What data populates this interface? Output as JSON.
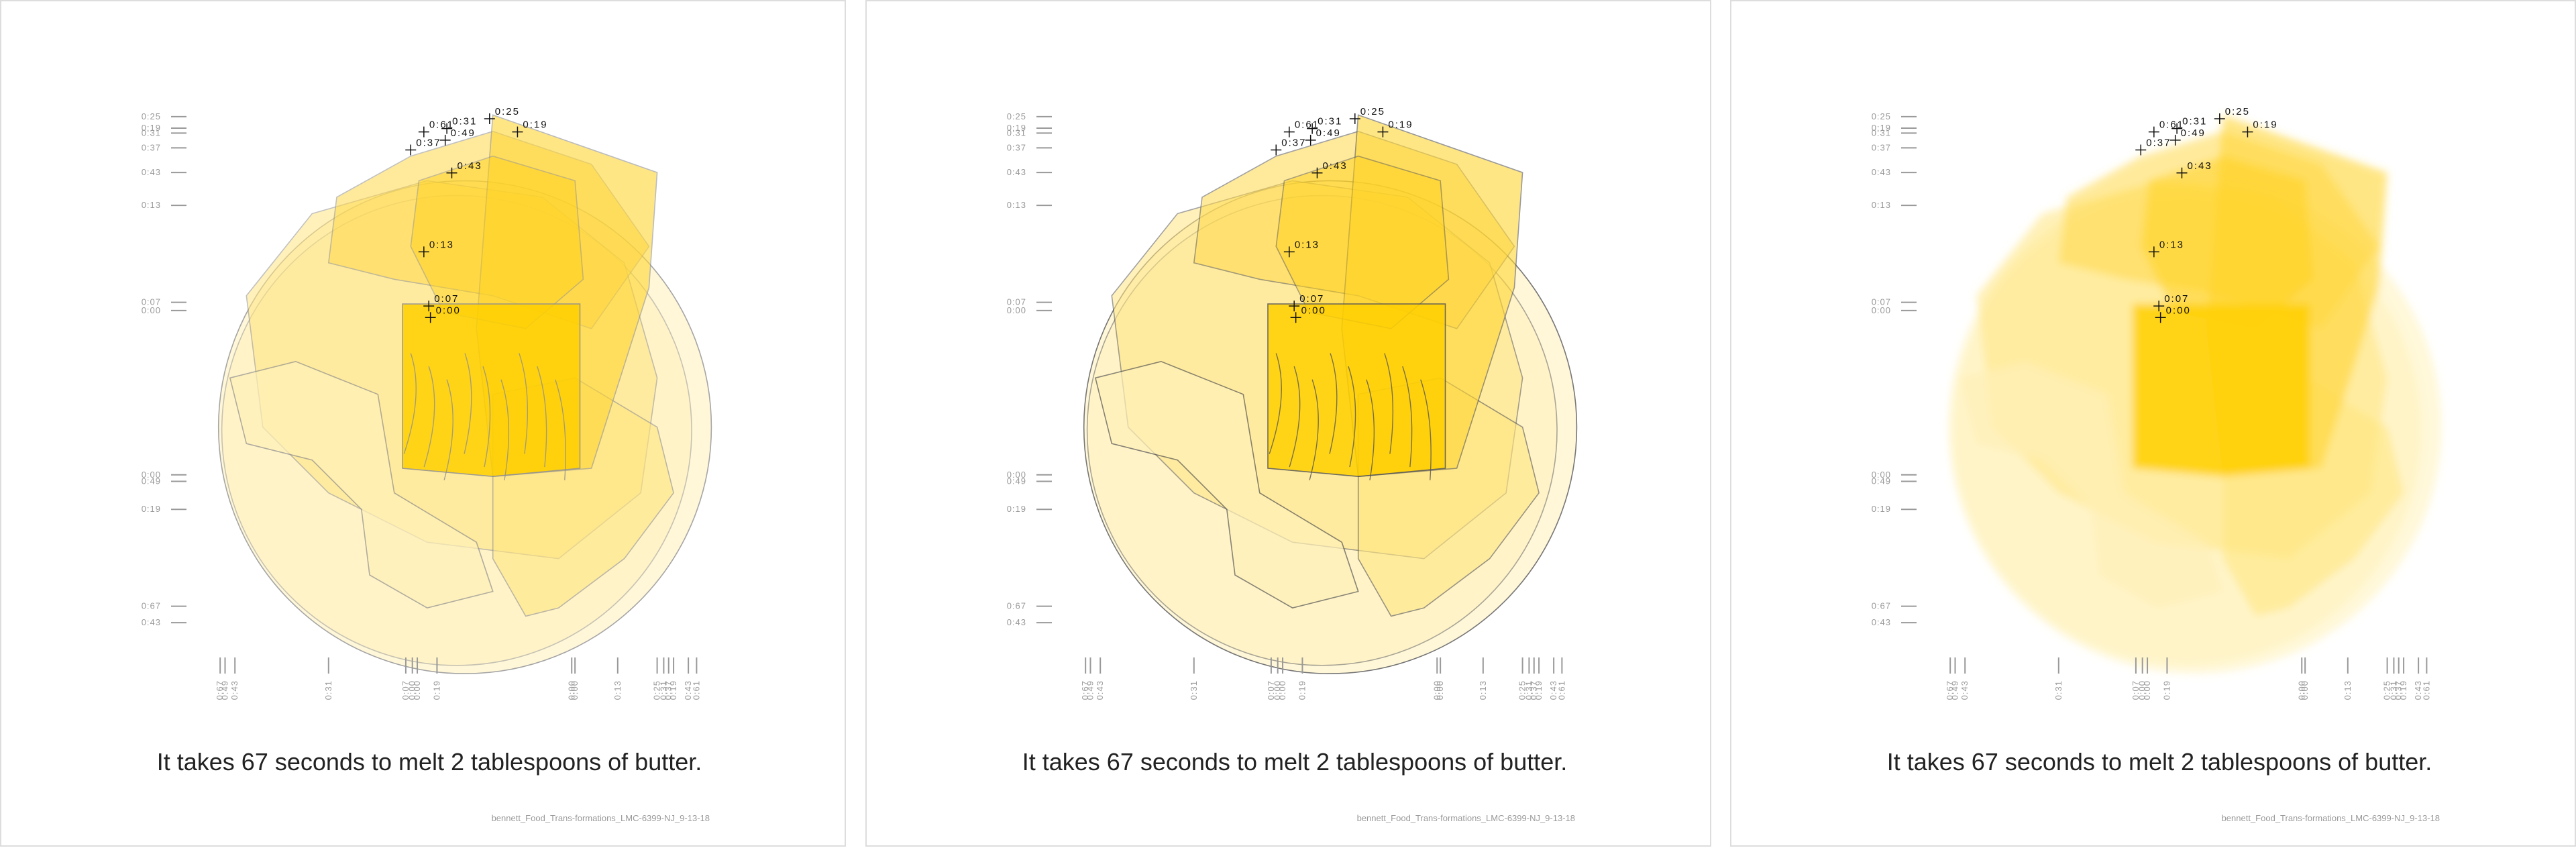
{
  "panels": [
    {
      "outline": "#8f8f8f",
      "markers": [
        "0:25",
        "0:19",
        "0:61",
        "0:31",
        "0:49",
        "0:37",
        "0:43",
        "0:13",
        "0:07",
        "0:00"
      ],
      "left_scale": [
        "0:25",
        "0:19",
        "0:31",
        "0:37",
        "0:43",
        "0:13",
        "0:07",
        "0:00",
        "0:00",
        "0:49",
        "0:19",
        "0:67",
        "0:43"
      ],
      "bottom_scale": [
        "0:67",
        "0:49",
        "0:43",
        "0:31",
        "0:07",
        "0:00",
        "0:00",
        "0:19",
        "0:00",
        "0:00",
        "0:13",
        "0:25",
        "0:31",
        "0:37",
        "0:19",
        "0:43",
        "0:61"
      ],
      "caption": "It takes 67 seconds to melt 2 tablespoons of butter.",
      "credit": "bennett_Food_Trans-formations_LMC-6399-NJ_9-13-18"
    },
    {
      "outline": "#555555",
      "markers": [
        "0:25",
        "0:19",
        "0:61",
        "0:31",
        "0:49",
        "0:37",
        "0:43",
        "0:13",
        "0:07",
        "0:00"
      ],
      "left_scale": [
        "0:25",
        "0:19",
        "0:31",
        "0:37",
        "0:43",
        "0:13",
        "0:07",
        "0:00",
        "0:00",
        "0:49",
        "0:19",
        "0:67",
        "0:43"
      ],
      "bottom_scale": [
        "0:67",
        "0:49",
        "0:43",
        "0:31",
        "0:07",
        "0:00",
        "0:00",
        "0:19",
        "0:00",
        "0:00",
        "0:13",
        "0:25",
        "0:31",
        "0:37",
        "0:19",
        "0:43",
        "0:61"
      ],
      "caption": "It takes 67 seconds to melt 2 tablespoons of butter.",
      "credit": "bennett_Food_Trans-formations_LMC-6399-NJ_9-13-18"
    },
    {
      "outline": null,
      "markers": [
        "0:25",
        "0:19",
        "0:61",
        "0:31",
        "0:49",
        "0:37",
        "0:43",
        "0:13",
        "0:07",
        "0:00"
      ],
      "left_scale": [
        "0:25",
        "0:19",
        "0:31",
        "0:37",
        "0:43",
        "0:13",
        "0:07",
        "0:00",
        "0:00",
        "0:49",
        "0:19",
        "0:67",
        "0:43"
      ],
      "bottom_scale": [
        "0:67",
        "0:49",
        "0:43",
        "0:31",
        "0:07",
        "0:00",
        "0:00",
        "0:19",
        "0:00",
        "0:00",
        "0:13",
        "0:25",
        "0:31",
        "0:37",
        "0:19",
        "0:43",
        "0:61"
      ],
      "caption": "It takes 67 seconds to melt 2 tablespoons of butter.",
      "credit": "bennett_Food_Trans-formations_LMC-6399-NJ_9-13-18"
    }
  ]
}
